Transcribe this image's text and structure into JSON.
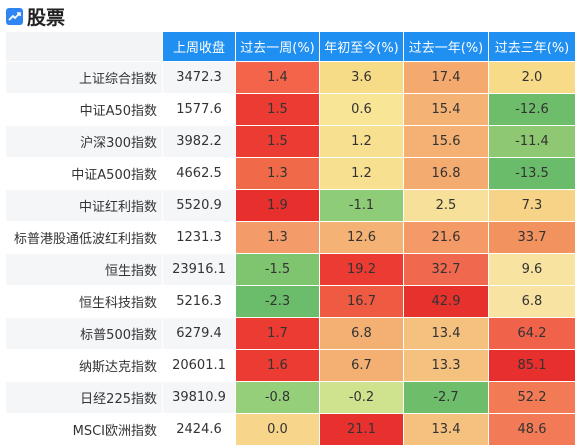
{
  "header": {
    "title": "股票",
    "icon": "trend-chart-icon"
  },
  "table": {
    "columns": [
      "",
      "上周收盘",
      "过去一周(%)",
      "年初至今(%)",
      "过去一年(%)",
      "过去三年(%)"
    ],
    "rows": [
      {
        "name": "上证综合指数",
        "close": "3472.3",
        "w": "1.4",
        "ytd": "3.6",
        "y1": "17.4",
        "y3": "2.0",
        "colors": [
          "#f4644a",
          "#f7dc87",
          "#f4aa6e",
          "#f7db89"
        ]
      },
      {
        "name": "中证A50指数",
        "close": "1577.6",
        "w": "1.5",
        "ytd": "0.6",
        "y1": "15.4",
        "y3": "-12.6",
        "colors": [
          "#ec3b33",
          "#f8e596",
          "#f4b275",
          "#6dbd6b"
        ]
      },
      {
        "name": "沪深300指数",
        "close": "3982.2",
        "w": "1.5",
        "ytd": "1.2",
        "y1": "15.6",
        "y3": "-11.4",
        "colors": [
          "#ec3b33",
          "#f7e08f",
          "#f4b173",
          "#8fc872"
        ]
      },
      {
        "name": "中证A500指数",
        "close": "4662.5",
        "w": "1.3",
        "ytd": "1.2",
        "y1": "16.8",
        "y3": "-13.5",
        "colors": [
          "#f06a4a",
          "#f7e08f",
          "#f4ab6f",
          "#6bbc6a"
        ]
      },
      {
        "name": "中证红利指数",
        "close": "5520.9",
        "w": "1.9",
        "ytd": "-1.1",
        "y1": "2.5",
        "y3": "7.3",
        "colors": [
          "#e7302e",
          "#8fcc78",
          "#f7e19a",
          "#f7d388"
        ]
      },
      {
        "name": "标普港股通低波红利指数",
        "close": "1231.3",
        "w": "1.3",
        "ytd": "12.6",
        "y1": "21.6",
        "y3": "33.7",
        "colors": [
          "#f49b6a",
          "#f4b275",
          "#f49a67",
          "#f2925f"
        ]
      },
      {
        "name": "恒生指数",
        "close": "23916.1",
        "w": "-1.5",
        "ytd": "19.2",
        "y1": "32.7",
        "y3": "9.6",
        "colors": [
          "#7fc46e",
          "#ec3b33",
          "#f0694e",
          "#f8e3a0"
        ]
      },
      {
        "name": "恒生科技指数",
        "close": "5216.3",
        "w": "-2.3",
        "ytd": "16.7",
        "y1": "42.9",
        "y3": "6.8",
        "colors": [
          "#6bbd6b",
          "#ef5a42",
          "#e7312d",
          "#f8e3a2"
        ]
      },
      {
        "name": "标普500指数",
        "close": "6279.4",
        "w": "1.7",
        "ytd": "6.8",
        "y1": "13.4",
        "y3": "64.2",
        "colors": [
          "#ec3b33",
          "#f4b073",
          "#f4c17f",
          "#f0634a"
        ]
      },
      {
        "name": "纳斯达克指数",
        "close": "20601.1",
        "w": "1.6",
        "ytd": "6.7",
        "y1": "13.3",
        "y3": "85.1",
        "colors": [
          "#ec3b33",
          "#f4b073",
          "#f4c17f",
          "#e7302e"
        ]
      },
      {
        "name": "日经225指数",
        "close": "39810.9",
        "w": "-0.8",
        "ytd": "-0.2",
        "y1": "-2.7",
        "y3": "52.2",
        "colors": [
          "#96cf7a",
          "#cfe38f",
          "#6dbd6b",
          "#f27a55"
        ]
      },
      {
        "name": "MSCI欧洲指数",
        "close": "2424.6",
        "w": "0.0",
        "ytd": "21.1",
        "y1": "13.4",
        "y3": "48.6",
        "colors": [
          "#f7d58a",
          "#e8312e",
          "#f4c17f",
          "#f27a56"
        ]
      }
    ]
  }
}
